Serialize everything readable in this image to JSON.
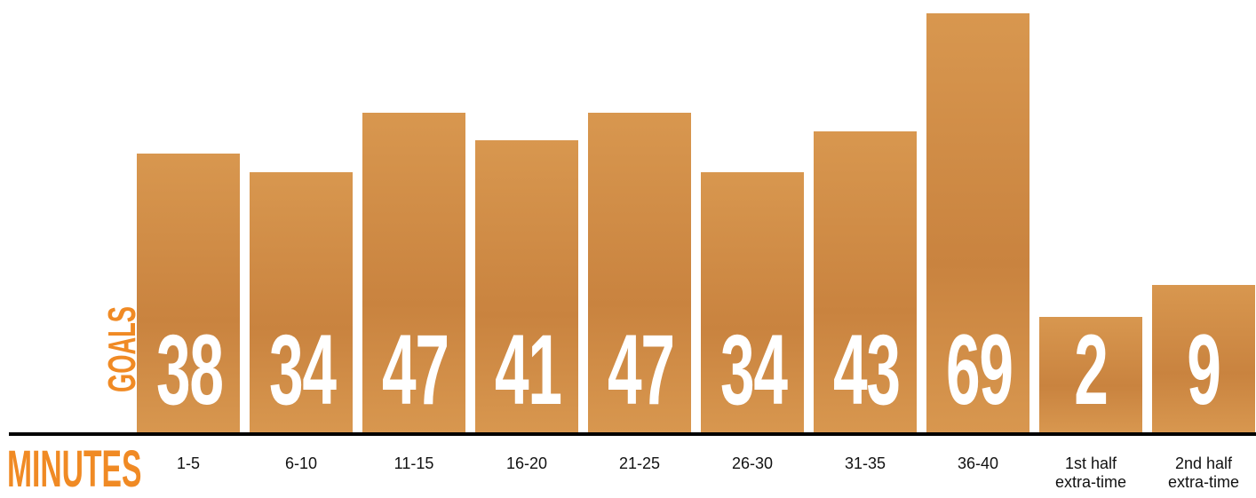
{
  "chart_data": {
    "type": "bar",
    "y_label": "GOALS",
    "x_label": "MINUTES",
    "categories": [
      "1-5",
      "6-10",
      "11-15",
      "16-20",
      "21-25",
      "26-30",
      "31-35",
      "36-40",
      "1st half extra-time",
      "2nd half extra-time"
    ],
    "values": [
      38,
      34,
      47,
      41,
      47,
      34,
      43,
      69,
      2,
      9
    ],
    "color": "#d8974f",
    "label_color": "#ffffff",
    "accent_color": "#f08a24"
  }
}
